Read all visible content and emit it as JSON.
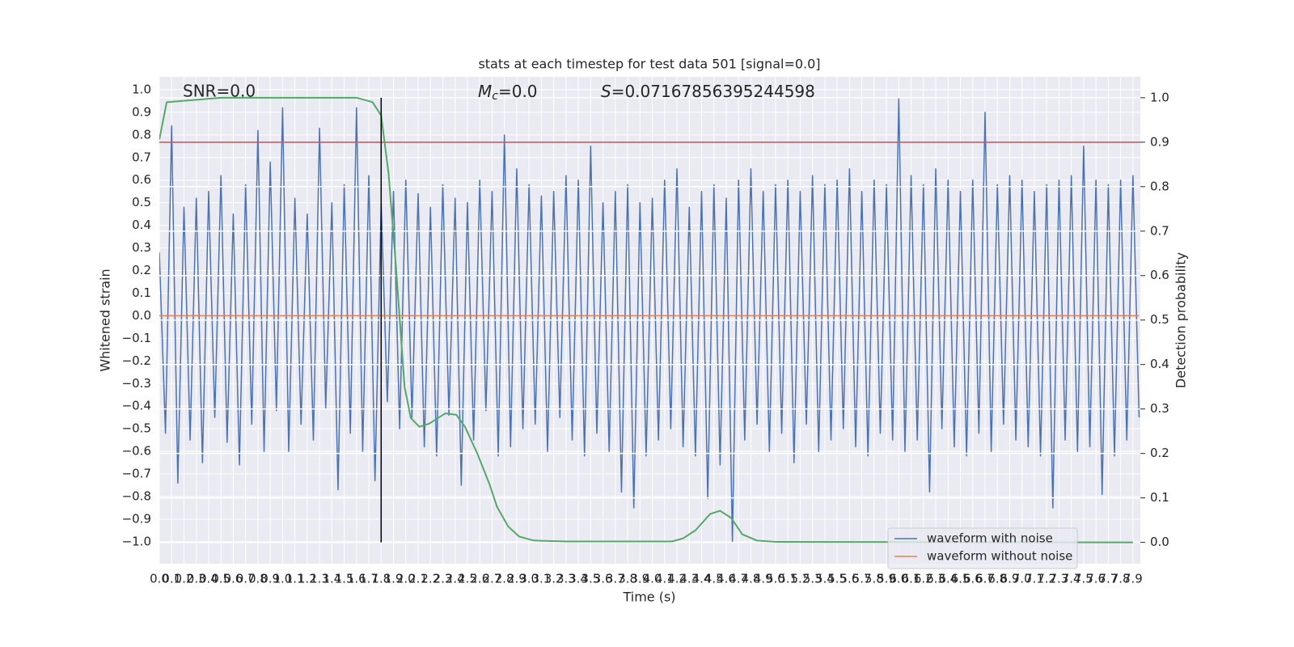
{
  "chart_data": {
    "type": "line",
    "title": "stats at each timestep for test data 501 [signal=0.0]",
    "x_label": "Time (s)",
    "y_label": "Whitened strain",
    "y2_label": "Detection probability",
    "annotations": [
      {
        "text": "SNR=0.0"
      },
      {
        "symbol": "M",
        "subscript": "c",
        "text": "=0.0"
      },
      {
        "symbol": "S",
        "text": "=0.07167856395244598"
      }
    ],
    "xlim": [
      0,
      7.96
    ],
    "ylim": [
      -1.097,
      1.057
    ],
    "y2lim": [
      -0.048,
      1.047
    ],
    "xticks": [
      {
        "value": 0,
        "label": "0.0"
      },
      0.1,
      0.2,
      0.3,
      0.4,
      0.5,
      0.6,
      0.7,
      0.8,
      0.9,
      {
        "value": 1,
        "label": "1.0"
      },
      1.1,
      1.2,
      1.3,
      1.4,
      1.5,
      1.6,
      1.7,
      1.8,
      1.9,
      {
        "value": 2,
        "label": "2.0"
      },
      2.1,
      2.2,
      2.3,
      2.4,
      2.5,
      2.6,
      2.7,
      2.8,
      2.9,
      {
        "value": 3,
        "label": "3.0"
      },
      3.1,
      3.2,
      3.3,
      3.4,
      3.5,
      3.6,
      3.7,
      3.8,
      3.9,
      {
        "value": 4,
        "label": "4.0"
      },
      4.1,
      4.2,
      4.3,
      4.4,
      4.5,
      4.6,
      4.7,
      4.8,
      4.9,
      {
        "value": 5,
        "label": "5.0"
      },
      5.1,
      5.2,
      5.3,
      5.4,
      5.5,
      5.6,
      5.7,
      5.8,
      5.9,
      {
        "value": 6,
        "label": "6.0"
      },
      6.1,
      6.2,
      6.3,
      6.4,
      6.5,
      6.6,
      6.7,
      6.8,
      6.9,
      {
        "value": 7,
        "label": "7.0"
      },
      7.1,
      7.2,
      7.3,
      7.4,
      7.5,
      7.6,
      7.7,
      7.8,
      7.9
    ],
    "yticks": [
      {
        "value": -1,
        "label": "−1.0"
      },
      {
        "value": -0.9,
        "label": "−0.9"
      },
      {
        "value": -0.8,
        "label": "−0.8"
      },
      {
        "value": -0.7,
        "label": "−0.7"
      },
      {
        "value": -0.6,
        "label": "−0.6"
      },
      {
        "value": -0.5,
        "label": "−0.5"
      },
      {
        "value": -0.4,
        "label": "−0.4"
      },
      {
        "value": -0.3,
        "label": "−0.3"
      },
      {
        "value": -0.2,
        "label": "−0.2"
      },
      {
        "value": -0.1,
        "label": "−0.1"
      },
      {
        "value": 0,
        "label": "0.0"
      },
      0.1,
      0.2,
      0.3,
      0.4,
      0.5,
      0.6,
      0.7,
      0.8,
      0.9,
      {
        "value": 1,
        "label": "1.0"
      }
    ],
    "y2ticks": [
      {
        "value": 0,
        "label": "0.0"
      },
      0.1,
      0.2,
      0.3,
      0.4,
      0.5,
      0.6,
      0.7,
      0.8,
      0.9,
      {
        "value": 1,
        "label": "1.0"
      }
    ],
    "grid": true,
    "legend": "lower right",
    "series": [
      {
        "name": "waveform with noise",
        "color": "#4c72b0",
        "x": [
          0,
          0.05,
          0.1,
          0.15,
          0.2,
          0.25,
          0.3,
          0.35,
          0.4,
          0.45,
          0.5,
          0.55,
          0.6,
          0.65,
          0.7,
          0.75,
          0.8,
          0.85,
          0.9,
          0.95,
          1,
          1.05,
          1.1,
          1.15,
          1.2,
          1.25,
          1.3,
          1.35,
          1.4,
          1.45,
          1.5,
          1.55,
          1.6,
          1.65,
          1.7,
          1.75,
          1.8,
          1.85,
          1.9,
          1.95,
          2,
          2.05,
          2.1,
          2.15,
          2.2,
          2.25,
          2.3,
          2.35,
          2.4,
          2.45,
          2.5,
          2.55,
          2.6,
          2.65,
          2.7,
          2.75,
          2.8,
          2.85,
          2.9,
          2.95,
          3,
          3.05,
          3.1,
          3.15,
          3.2,
          3.25,
          3.3,
          3.35,
          3.4,
          3.45,
          3.5,
          3.55,
          3.6,
          3.65,
          3.7,
          3.75,
          3.8,
          3.85,
          3.9,
          3.95,
          4,
          4.05,
          4.1,
          4.15,
          4.2,
          4.25,
          4.3,
          4.35,
          4.4,
          4.45,
          4.5,
          4.55,
          4.6,
          4.65,
          4.7,
          4.75,
          4.8,
          4.85,
          4.9,
          4.95,
          5,
          5.05,
          5.1,
          5.15,
          5.2,
          5.25,
          5.3,
          5.35,
          5.4,
          5.45,
          5.5,
          5.55,
          5.6,
          5.65,
          5.7,
          5.75,
          5.8,
          5.85,
          5.9,
          5.95,
          6,
          6.05,
          6.1,
          6.15,
          6.2,
          6.25,
          6.3,
          6.35,
          6.4,
          6.45,
          6.5,
          6.55,
          6.6,
          6.65,
          6.7,
          6.75,
          6.8,
          6.85,
          6.9,
          6.95,
          7,
          7.05,
          7.1,
          7.15,
          7.2,
          7.25,
          7.3,
          7.35,
          7.4,
          7.45,
          7.5,
          7.55,
          7.6,
          7.65,
          7.7,
          7.75,
          7.8,
          7.85,
          7.9,
          7.95
        ],
        "values": [
          0.28,
          -0.52,
          0.84,
          -0.74,
          0.48,
          -0.55,
          0.52,
          -0.65,
          0.55,
          -0.45,
          0.62,
          -0.56,
          0.45,
          -0.66,
          0.58,
          -0.48,
          0.82,
          -0.6,
          0.68,
          -0.42,
          0.92,
          -0.6,
          0.52,
          -0.48,
          0.45,
          -0.55,
          0.83,
          -0.41,
          0.5,
          -0.77,
          0.58,
          -0.52,
          0.92,
          -0.6,
          0.62,
          -0.73,
          0.5,
          -0.38,
          0.55,
          -0.5,
          0.6,
          -0.45,
          0.54,
          -0.58,
          0.48,
          -0.62,
          0.58,
          -0.44,
          0.52,
          -0.75,
          0.5,
          -0.55,
          0.6,
          -0.42,
          0.55,
          -0.62,
          0.8,
          -0.58,
          0.65,
          -0.5,
          0.58,
          -0.48,
          0.53,
          -0.6,
          0.55,
          -0.45,
          0.62,
          -0.55,
          0.6,
          -0.62,
          0.75,
          -0.52,
          0.5,
          -0.6,
          0.55,
          -0.78,
          0.58,
          -0.85,
          0.5,
          -0.62,
          0.52,
          -0.55,
          0.6,
          -0.5,
          0.65,
          -0.58,
          0.48,
          -0.62,
          0.55,
          -0.81,
          0.58,
          -0.66,
          0.52,
          -1.0,
          0.6,
          -0.55,
          0.65,
          -0.48,
          0.55,
          -0.6,
          0.58,
          -0.52,
          0.6,
          -0.65,
          0.55,
          -0.48,
          0.62,
          -0.6,
          0.58,
          -0.55,
          0.6,
          -0.5,
          0.65,
          -0.58,
          0.55,
          -0.62,
          0.6,
          -0.52,
          0.58,
          -0.55,
          0.96,
          -0.6,
          0.62,
          -0.55,
          0.58,
          -0.78,
          0.65,
          -0.5,
          0.6,
          -0.58,
          0.55,
          -0.62,
          0.6,
          -0.52,
          0.9,
          -0.6,
          0.58,
          -0.48,
          0.62,
          -0.55,
          0.6,
          -0.58,
          0.55,
          -0.62,
          0.58,
          -0.85,
          0.6,
          -0.55,
          0.62,
          -0.6,
          0.75,
          -0.58,
          0.6,
          -0.79,
          0.58,
          -0.62,
          0.6,
          -0.55,
          0.62,
          -0.45
        ]
      },
      {
        "name": "waveform without noise",
        "color": "#dd8452",
        "x": [
          0,
          7.95
        ],
        "values": [
          0,
          0
        ]
      },
      {
        "color": "#55a868",
        "axis": "y2",
        "x": [
          0,
          0.06,
          0.5,
          1.0,
          1.6,
          1.73,
          1.8,
          1.86,
          1.92,
          1.99,
          2.04,
          2.11,
          2.19,
          2.32,
          2.41,
          2.48,
          2.58,
          2.68,
          2.74,
          2.83,
          2.92,
          3.04,
          3.3,
          4.16,
          4.25,
          4.35,
          4.47,
          4.55,
          4.64,
          4.73,
          4.85,
          5.01,
          7.9
        ],
        "values": [
          0.906,
          0.99,
          1.0,
          1.0,
          1.0,
          0.99,
          0.96,
          0.83,
          0.62,
          0.35,
          0.28,
          0.26,
          0.267,
          0.29,
          0.287,
          0.26,
          0.2,
          0.13,
          0.08,
          0.036,
          0.013,
          0.004,
          0.002,
          0.002,
          0.009,
          0.027,
          0.064,
          0.071,
          0.055,
          0.018,
          0.004,
          0.001,
          0.0
        ]
      }
    ],
    "hlines": [
      {
        "value": 0.9,
        "axis": "y2",
        "color": "#c44e52"
      }
    ],
    "vlines": [
      {
        "value": 1.8,
        "y2range": [
          0,
          1
        ],
        "color": "#000000"
      }
    ]
  }
}
